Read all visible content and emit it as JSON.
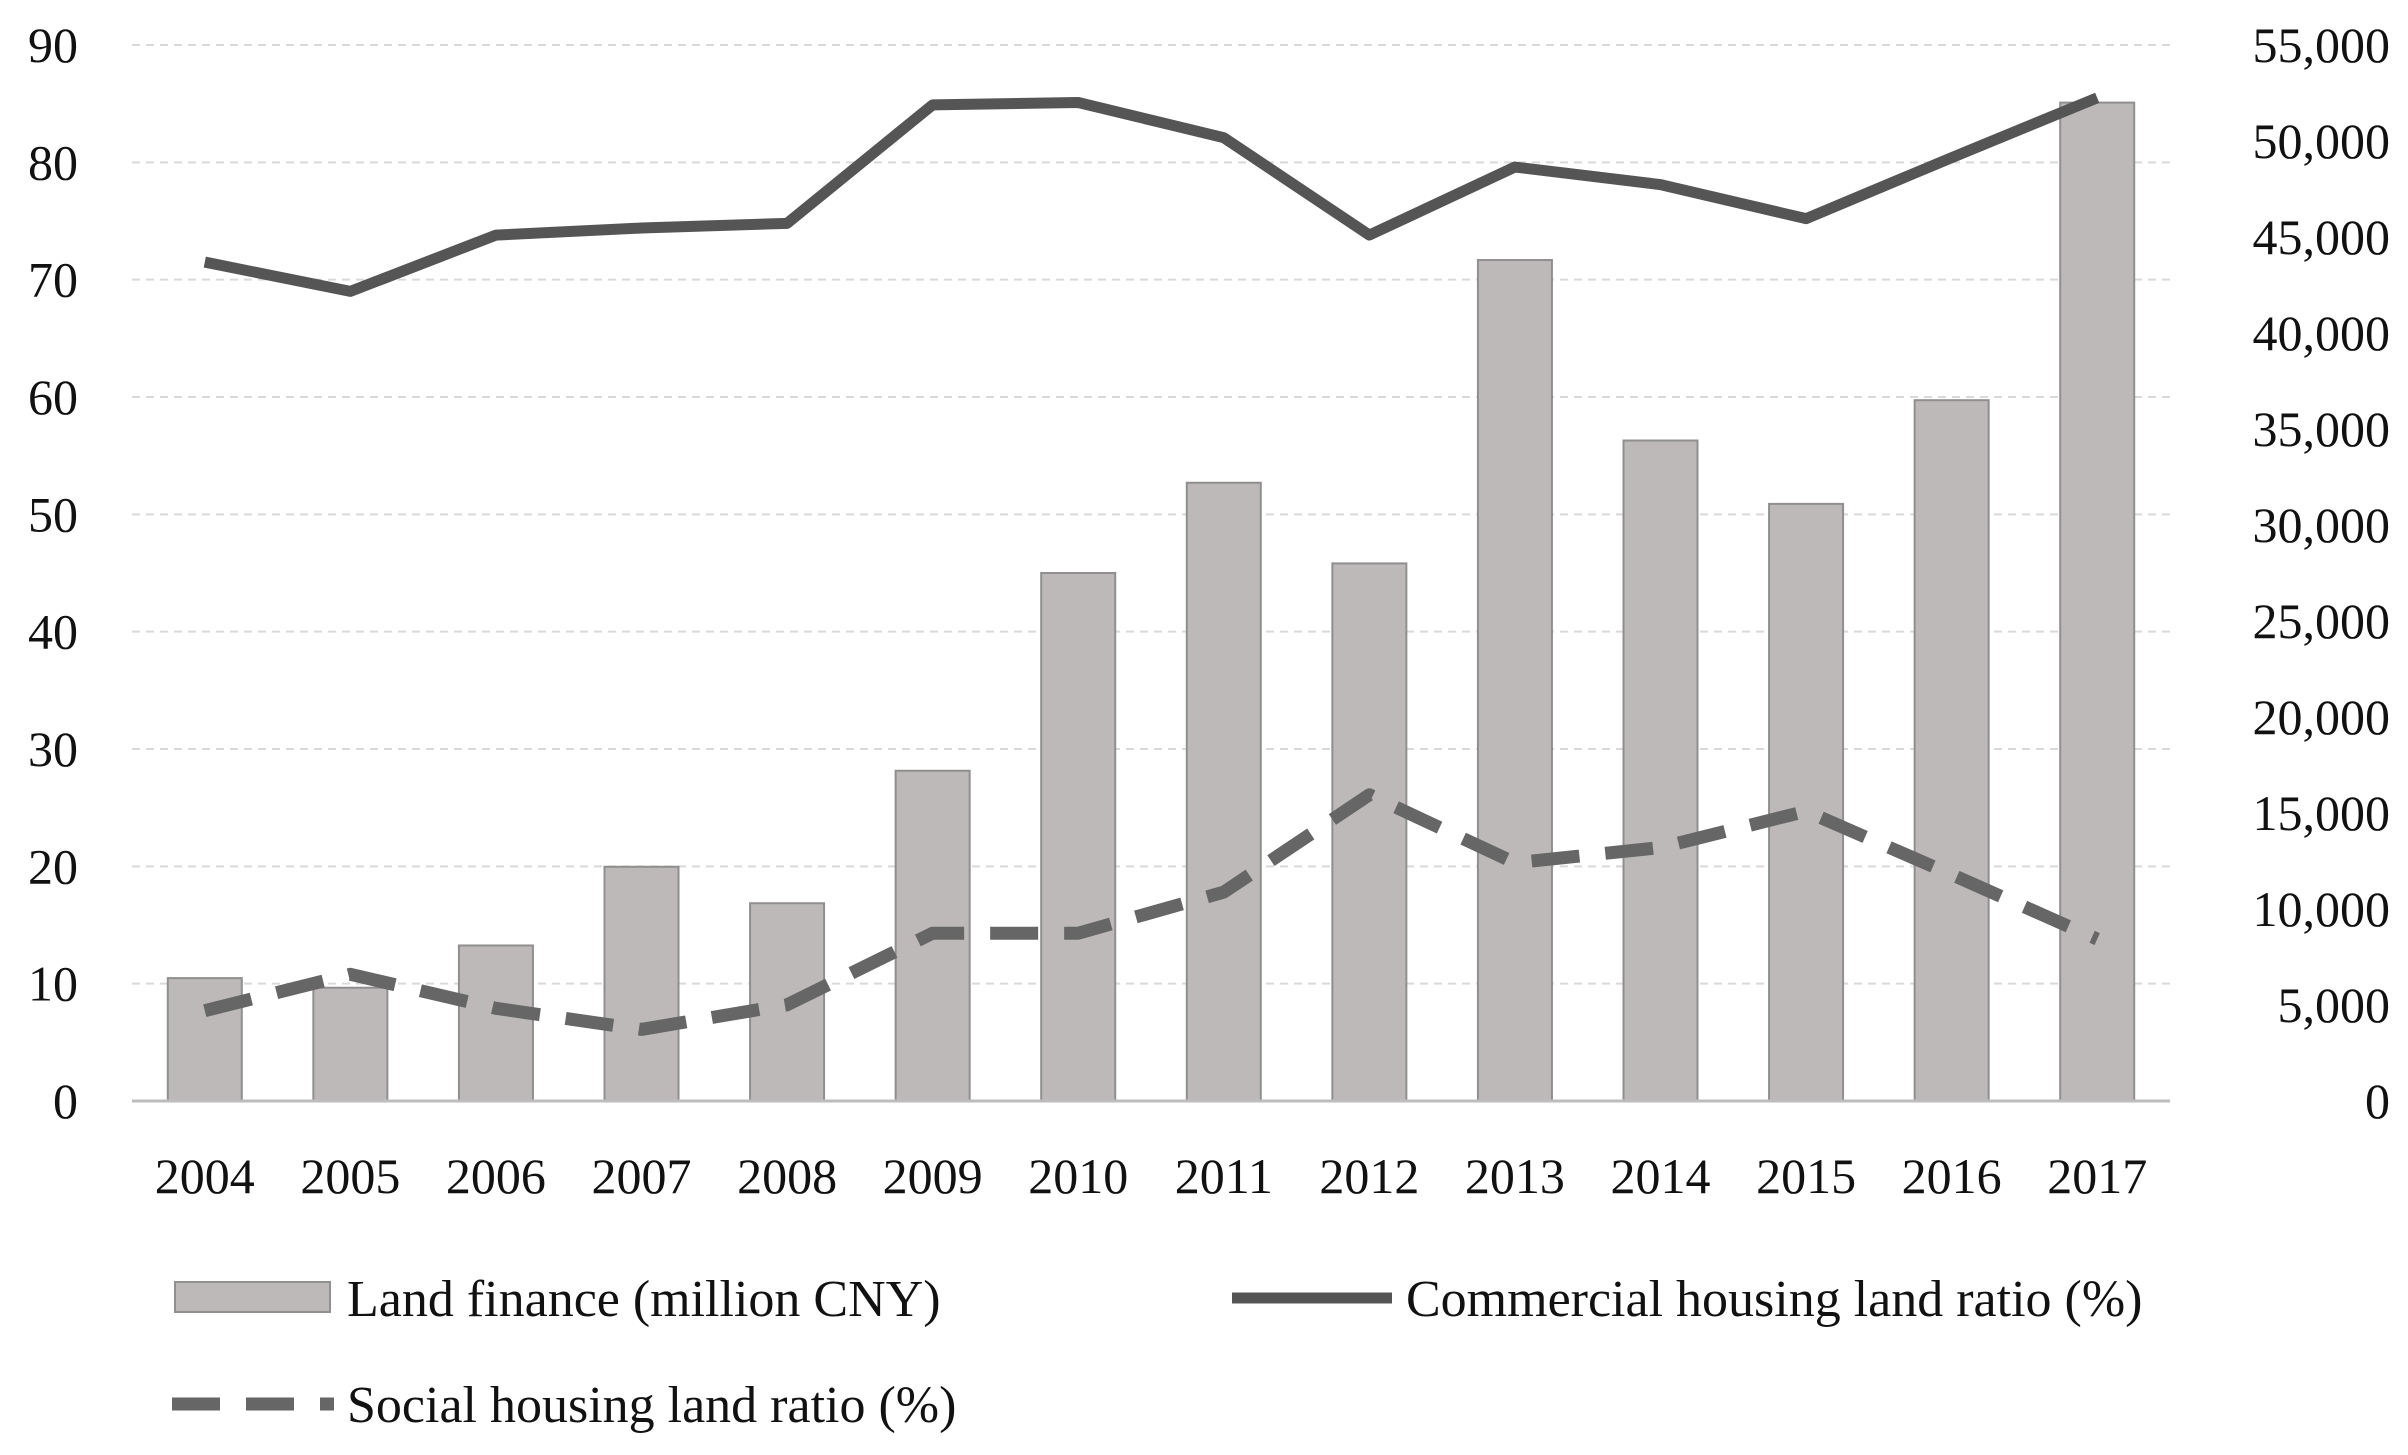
{
  "chart_data": {
    "type": "bar",
    "title": "",
    "xlabel": "",
    "ylabel_left": "",
    "ylabel_right": "",
    "categories": [
      "2004",
      "2005",
      "2006",
      "2007",
      "2008",
      "2009",
      "2010",
      "2011",
      "2012",
      "2013",
      "2014",
      "2015",
      "2016",
      "2017"
    ],
    "ylim_left": [
      0,
      90
    ],
    "ylim_right": [
      0,
      55000
    ],
    "left_ticks": [
      "0",
      "10",
      "20",
      "30",
      "40",
      "50",
      "60",
      "70",
      "80",
      "90"
    ],
    "right_ticks": [
      "0",
      "5,000",
      "10,000",
      "15,000",
      "20,000",
      "25,000",
      "30,000",
      "35,000",
      "40,000",
      "45,000",
      "50,000",
      "55,000"
    ],
    "grid": true,
    "legend_position": "bottom",
    "series": [
      {
        "name": "Land finance (million CNY)",
        "type": "bar",
        "axis": "right",
        "color": "#bdb9b9",
        "values": [
          6400,
          5900,
          8100,
          12200,
          10300,
          17200,
          27500,
          32200,
          28000,
          43800,
          34400,
          31100,
          36500,
          52000
        ]
      },
      {
        "name": "Commercial housing land ratio (%)",
        "type": "line",
        "axis": "left",
        "color": "#555555",
        "dash": "solid",
        "values": [
          71.5,
          69.0,
          73.8,
          74.4,
          74.8,
          84.9,
          85.1,
          82.1,
          73.8,
          79.6,
          78.1,
          75.2,
          80.4,
          85.5
        ]
      },
      {
        "name": "Social housing land ratio (%)",
        "type": "line",
        "axis": "left",
        "color": "#666666",
        "dash": "dashed",
        "values": [
          7.7,
          10.8,
          7.9,
          6.1,
          8.2,
          14.3,
          14.3,
          17.8,
          26.1,
          20.3,
          21.6,
          24.7,
          19.3,
          13.8
        ]
      }
    ]
  }
}
